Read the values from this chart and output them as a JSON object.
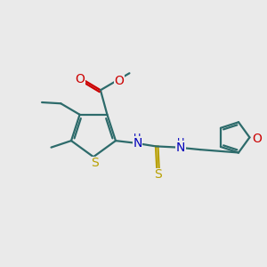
{
  "bg_color": "#eaeaea",
  "bond_color": "#2d6b6b",
  "s_color": "#b8a000",
  "o_color": "#cc0000",
  "n_color": "#0000bb",
  "line_width": 1.6,
  "figsize": [
    3.0,
    3.0
  ],
  "dpi": 100,
  "xlim": [
    0,
    12
  ],
  "ylim": [
    0,
    10
  ]
}
